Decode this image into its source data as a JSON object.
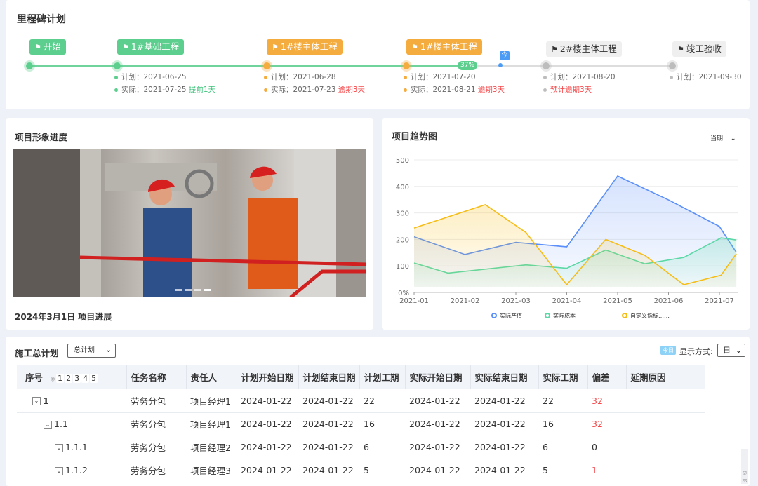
{
  "milestones": {
    "title": "里程碑计划",
    "progress_label": "37%",
    "today_label": "今",
    "items": [
      {
        "name": "开始",
        "status": "done"
      },
      {
        "name": "1#基础工程",
        "plan_label": "计划：",
        "plan": "2021-06-25",
        "actual_label": "实际：",
        "actual": "2021-07-25",
        "note": "提前1天",
        "status": "done"
      },
      {
        "name": "1#楼主体工程",
        "plan_label": "计划：",
        "plan": "2021-06-28",
        "actual_label": "实际：",
        "actual": "2021-07-23",
        "note": "逾期3天",
        "status": "late"
      },
      {
        "name": "1#楼主体工程",
        "plan_label": "计划：",
        "plan": "2021-07-20",
        "actual_label": "实际：",
        "actual": "2021-08-21",
        "note": "逾期3天",
        "status": "late"
      },
      {
        "name": "2#楼主体工程",
        "plan_label": "计划：",
        "plan": "2021-08-20",
        "note": "预计逾期3天",
        "status": "pending"
      },
      {
        "name": "竣工验收",
        "plan_label": "计划：",
        "plan": "2021-09-30",
        "status": "pending"
      }
    ],
    "colors": {
      "done": "#5ccf8e",
      "late": "#f5ac3f",
      "pending": "#bdbdbd",
      "today": "#4c9bf5"
    }
  },
  "image_panel": {
    "title": "项目形象进度",
    "caption": "2024年3月1日 项目进展"
  },
  "trend": {
    "title": "项目趋势图",
    "period_select": "当期"
  },
  "chart_data": {
    "type": "area",
    "ylim": [
      0,
      500
    ],
    "y_ticks": [
      "0%",
      "100",
      "200",
      "300",
      "400",
      "500"
    ],
    "x_ticks": [
      "2021-01",
      "2021-02",
      "2021-03",
      "2021-04",
      "2021-05",
      "2021-06",
      "2021-07"
    ],
    "grid": true,
    "legend_position": "bottom",
    "series": [
      {
        "name": "实际产值",
        "color": "#5b8ff9",
        "points": [
          [
            "2021-01-01",
            210
          ],
          [
            "2021-02-01",
            143
          ],
          [
            "2021-03-01",
            189
          ],
          [
            "2021-04-01",
            172
          ],
          [
            "2021-05-01",
            439
          ],
          [
            "2021-06-01",
            349
          ],
          [
            "2021-07-01",
            249
          ],
          [
            "2021-07-11",
            151
          ]
        ]
      },
      {
        "name": "实际成本",
        "color": "#5ad8a6",
        "points": [
          [
            "2021-01-01",
            111
          ],
          [
            "2021-01-21",
            73
          ],
          [
            "2021-03-07",
            104
          ],
          [
            "2021-04-01",
            91
          ],
          [
            "2021-04-24",
            160
          ],
          [
            "2021-05-17",
            108
          ],
          [
            "2021-06-10",
            132
          ],
          [
            "2021-07-02",
            206
          ],
          [
            "2021-07-11",
            198
          ]
        ]
      },
      {
        "name": "自定义指标……",
        "color": "#f6bd16",
        "points": [
          [
            "2021-01-01",
            243
          ],
          [
            "2021-02-13",
            331
          ],
          [
            "2021-03-07",
            226
          ],
          [
            "2021-04-01",
            29
          ],
          [
            "2021-04-24",
            200
          ],
          [
            "2021-05-17",
            140
          ],
          [
            "2021-06-10",
            29
          ],
          [
            "2021-07-02",
            65
          ],
          [
            "2021-07-11",
            146
          ]
        ]
      }
    ]
  },
  "plan": {
    "title": "施工总计划",
    "plan_select": "总计划",
    "today_btn": "今日",
    "display_label": "显示方式:",
    "display_select": "日",
    "levels": [
      "1",
      "2",
      "3",
      "4",
      "5"
    ],
    "columns": [
      "序号",
      "任务名称",
      "责任人",
      "计划开始日期",
      "计划结束日期",
      "计划工期",
      "实际开始日期",
      "实际结束日期",
      "实际工期",
      "偏差",
      "延期原因"
    ],
    "rows": [
      {
        "id": "1",
        "task": "劳务分包",
        "owner": "项目经理1",
        "ps": "2024-01-22",
        "pe": "2024-01-22",
        "pd": "22",
        "as": "2024-01-22",
        "ae": "2024-01-22",
        "ad": "22",
        "dev": "32",
        "reason": ""
      },
      {
        "id": "1.1",
        "task": "劳务分包",
        "owner": "项目经理1",
        "ps": "2024-01-22",
        "pe": "2024-01-22",
        "pd": "16",
        "as": "2024-01-22",
        "ae": "2024-01-22",
        "ad": "16",
        "dev": "32",
        "reason": ""
      },
      {
        "id": "1.1.1",
        "task": "劳务分包",
        "owner": "项目经理2",
        "ps": "2024-01-22",
        "pe": "2024-01-22",
        "pd": "6",
        "as": "2024-01-22",
        "ae": "2024-01-22",
        "ad": "6",
        "dev": "0",
        "reason": ""
      },
      {
        "id": "1.1.2",
        "task": "劳务分包",
        "owner": "项目经理3",
        "ps": "2024-01-22",
        "pe": "2024-01-22",
        "pd": "5",
        "as": "2024-01-22",
        "ae": "2024-01-22",
        "ad": "5",
        "dev": "1",
        "reason": ""
      }
    ],
    "side_tab": "显示"
  }
}
